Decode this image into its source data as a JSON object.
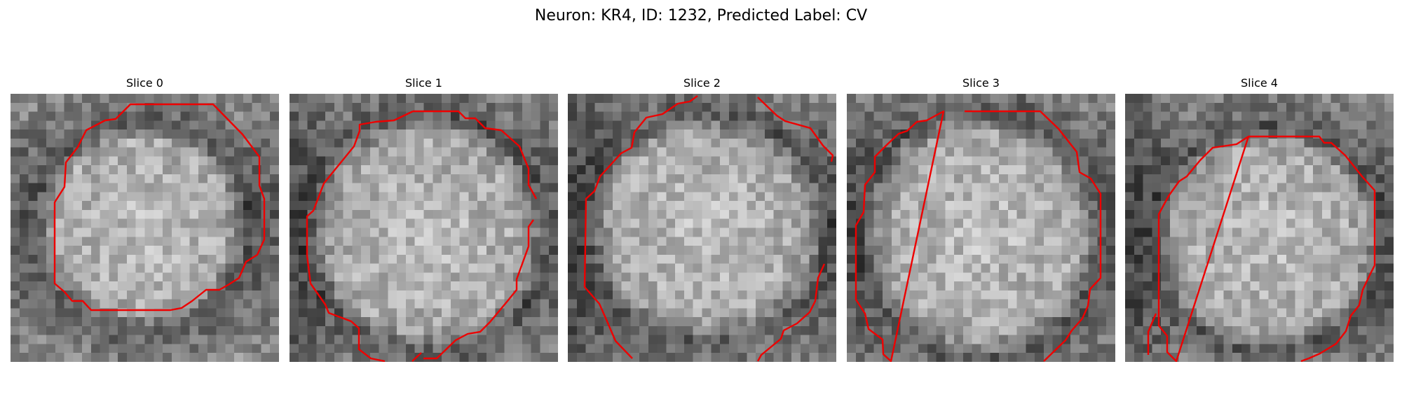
{
  "figure": {
    "title": "Neuron: KR4, ID: 1232, Predicted Label: CV"
  },
  "contour_color": "#ee0000",
  "panels": [
    {
      "title": "Slice 0"
    },
    {
      "title": "Slice 1"
    },
    {
      "title": "Slice 2"
    },
    {
      "title": "Slice 3"
    },
    {
      "title": "Slice 4"
    }
  ]
}
